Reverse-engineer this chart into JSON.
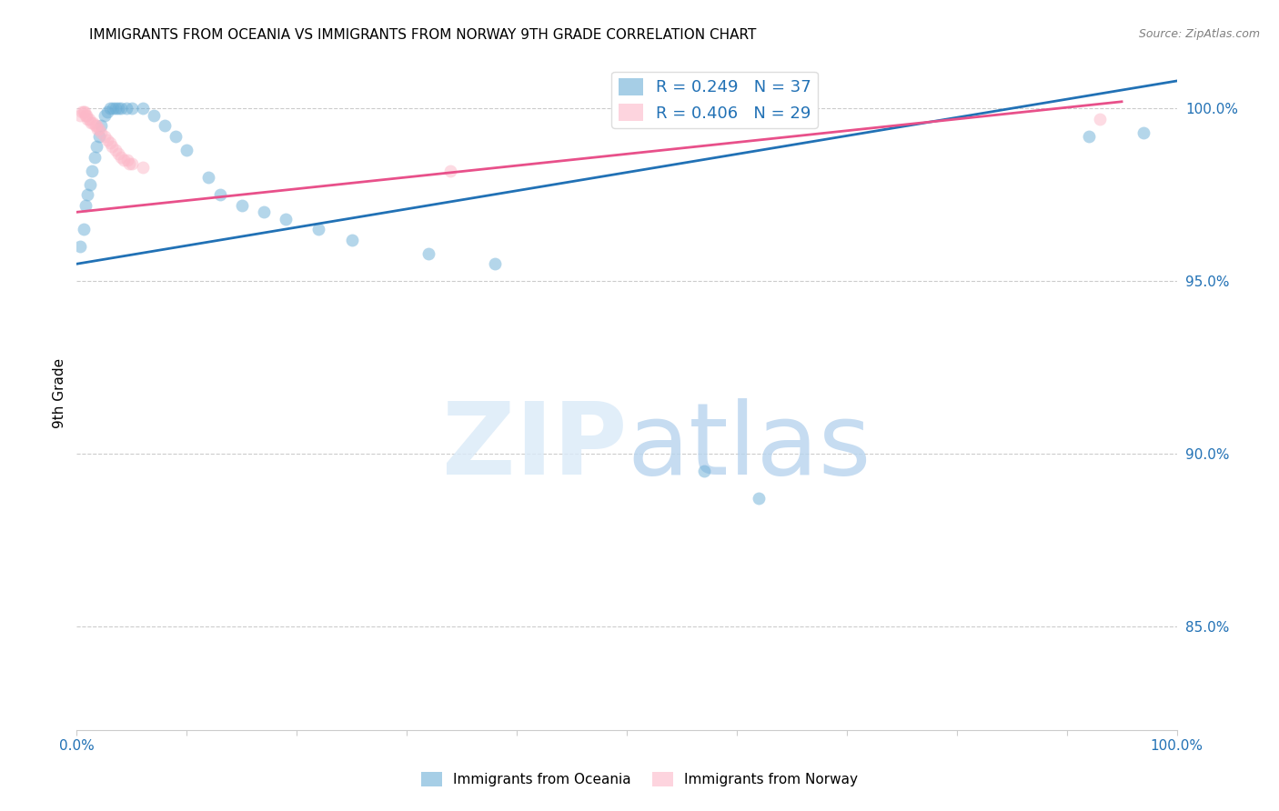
{
  "title": "IMMIGRANTS FROM OCEANIA VS IMMIGRANTS FROM NORWAY 9TH GRADE CORRELATION CHART",
  "source": "Source: ZipAtlas.com",
  "ylabel": "9th Grade",
  "xlim": [
    0.0,
    1.0
  ],
  "ylim": [
    0.82,
    1.015
  ],
  "ytick_labels": [
    "85.0%",
    "90.0%",
    "95.0%",
    "100.0%"
  ],
  "ytick_values": [
    0.85,
    0.9,
    0.95,
    1.0
  ],
  "xtick_labels": [
    "0.0%",
    "",
    "",
    "",
    "",
    "",
    "",
    "",
    "",
    "",
    "100.0%"
  ],
  "xtick_values": [
    0.0,
    0.1,
    0.2,
    0.3,
    0.4,
    0.5,
    0.6,
    0.7,
    0.8,
    0.9,
    1.0
  ],
  "legend_entries": [
    {
      "label": "R = 0.249   N = 37",
      "color": "#6baed6"
    },
    {
      "label": "R = 0.406   N = 29",
      "color": "#fa9fb5"
    }
  ],
  "blue_scatter_x": [
    0.003,
    0.006,
    0.008,
    0.01,
    0.012,
    0.014,
    0.016,
    0.018,
    0.02,
    0.022,
    0.025,
    0.028,
    0.03,
    0.033,
    0.035,
    0.038,
    0.04,
    0.045,
    0.05,
    0.06,
    0.07,
    0.08,
    0.09,
    0.1,
    0.12,
    0.13,
    0.15,
    0.17,
    0.19,
    0.22,
    0.25,
    0.32,
    0.38,
    0.57,
    0.62,
    0.92,
    0.97
  ],
  "blue_scatter_y": [
    0.96,
    0.965,
    0.972,
    0.975,
    0.978,
    0.982,
    0.986,
    0.989,
    0.992,
    0.995,
    0.998,
    0.999,
    1.0,
    1.0,
    1.0,
    1.0,
    1.0,
    1.0,
    1.0,
    1.0,
    0.998,
    0.995,
    0.992,
    0.988,
    0.98,
    0.975,
    0.972,
    0.97,
    0.968,
    0.965,
    0.962,
    0.958,
    0.955,
    0.895,
    0.887,
    0.992,
    0.993
  ],
  "pink_scatter_x": [
    0.003,
    0.005,
    0.006,
    0.007,
    0.008,
    0.009,
    0.01,
    0.011,
    0.013,
    0.015,
    0.017,
    0.018,
    0.019,
    0.02,
    0.022,
    0.025,
    0.028,
    0.03,
    0.032,
    0.035,
    0.038,
    0.04,
    0.043,
    0.046,
    0.048,
    0.05,
    0.06,
    0.34,
    0.93
  ],
  "pink_scatter_y": [
    0.998,
    0.999,
    0.999,
    0.999,
    0.998,
    0.998,
    0.997,
    0.997,
    0.996,
    0.996,
    0.995,
    0.995,
    0.994,
    0.994,
    0.993,
    0.992,
    0.991,
    0.99,
    0.989,
    0.988,
    0.987,
    0.986,
    0.985,
    0.985,
    0.984,
    0.984,
    0.983,
    0.982,
    0.997
  ],
  "blue_line_x": [
    0.0,
    1.0
  ],
  "blue_line_y": [
    0.955,
    1.008
  ],
  "pink_line_x": [
    0.0,
    0.95
  ],
  "pink_line_y": [
    0.97,
    1.002
  ],
  "scatter_alpha": 0.5,
  "scatter_size": 100,
  "blue_color": "#6baed6",
  "pink_color": "#fcb8c8",
  "blue_line_color": "#2171b5",
  "pink_line_color": "#e8508a",
  "grid_color": "#cccccc",
  "background_color": "#ffffff"
}
